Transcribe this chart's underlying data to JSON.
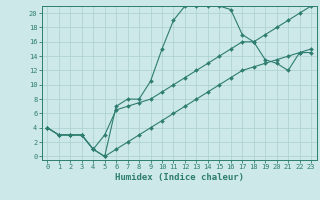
{
  "title": "",
  "xlabel": "Humidex (Indice chaleur)",
  "ylabel": "",
  "bg_color": "#cce8e8",
  "line_color": "#2e7d70",
  "grid_color": "#aacfcf",
  "xlim": [
    -0.5,
    23.5
  ],
  "ylim": [
    -0.5,
    21.0
  ],
  "xticks": [
    0,
    1,
    2,
    3,
    4,
    5,
    6,
    7,
    8,
    9,
    10,
    11,
    12,
    13,
    14,
    15,
    16,
    17,
    18,
    19,
    20,
    21,
    22,
    23
  ],
  "yticks": [
    0,
    2,
    4,
    6,
    8,
    10,
    12,
    14,
    16,
    18,
    20
  ],
  "line1_x": [
    0,
    1,
    2,
    3,
    4,
    5,
    6,
    7,
    8,
    9,
    10,
    11,
    12,
    13,
    14,
    15,
    16,
    17,
    18,
    19,
    20,
    21,
    22,
    23
  ],
  "line1_y": [
    4,
    3,
    3,
    3,
    1,
    0,
    7,
    8,
    8,
    10.5,
    15,
    19,
    21,
    21,
    21,
    21,
    20.5,
    17,
    16,
    13.5,
    13,
    12,
    14.5,
    14.5
  ],
  "line2_x": [
    0,
    1,
    2,
    3,
    4,
    5,
    6,
    7,
    8,
    9,
    10,
    11,
    12,
    13,
    14,
    15,
    16,
    17,
    18,
    19,
    20,
    21,
    22,
    23
  ],
  "line2_y": [
    4,
    3,
    3,
    3,
    1,
    3,
    6.5,
    7,
    7.5,
    8,
    9,
    10,
    11,
    12,
    13,
    14,
    15,
    16,
    16,
    17,
    18,
    19,
    20,
    21
  ],
  "line3_x": [
    0,
    1,
    2,
    3,
    4,
    5,
    6,
    7,
    8,
    9,
    10,
    11,
    12,
    13,
    14,
    15,
    16,
    17,
    18,
    19,
    20,
    21,
    22,
    23
  ],
  "line3_y": [
    4,
    3,
    3,
    3,
    1,
    0,
    1,
    2,
    3,
    4,
    5,
    6,
    7,
    8,
    9,
    10,
    11,
    12,
    12.5,
    13,
    13.5,
    14,
    14.5,
    15
  ],
  "marker": "D",
  "markersize": 2.0,
  "linewidth": 0.8,
  "xlabel_fontsize": 6.5,
  "tick_fontsize": 5.0
}
